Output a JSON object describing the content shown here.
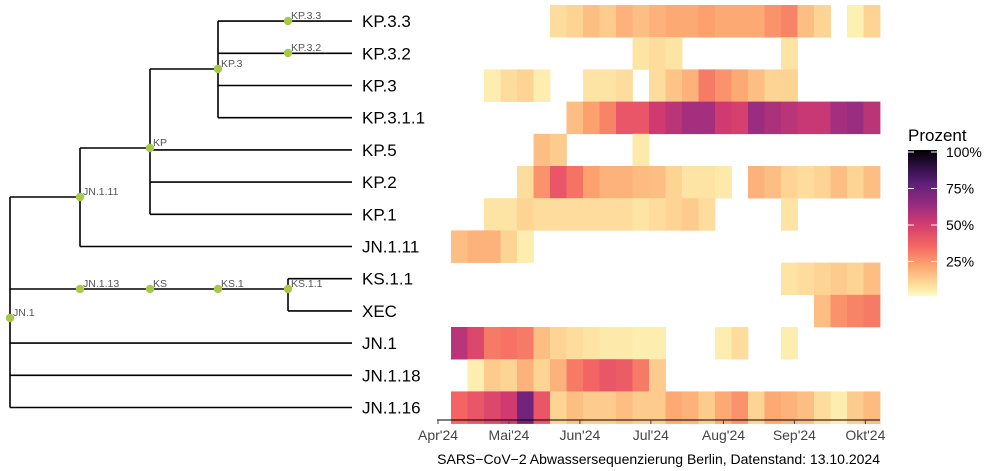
{
  "chart_data": {
    "type": "heatmap",
    "caption": "SARS−CoV−2 Abwassersequenzierung Berlin, Datenstand: 13.10.2024",
    "legend": {
      "title": "Prozent",
      "ticks": [
        "25%",
        "50%",
        "75%",
        "100%"
      ],
      "tick_values": [
        25,
        50,
        75,
        100
      ],
      "range": [
        0,
        100
      ]
    },
    "x_axis": {
      "ticks": [
        "Apr'24",
        "Mai'24",
        "Jun'24",
        "Jul'24",
        "Aug'24",
        "Sep'24",
        "Okt'24"
      ],
      "tick_weeks": [
        0,
        4.3,
        8.6,
        12.9,
        17.3,
        21.6,
        25.9
      ]
    },
    "weeks": 26,
    "rows": [
      {
        "name": "KP.3.3",
        "values": [
          null,
          null,
          null,
          null,
          null,
          null,
          8,
          10,
          15,
          12,
          18,
          15,
          18,
          20,
          20,
          22,
          20,
          20,
          20,
          25,
          28,
          15,
          10,
          null,
          3,
          10
        ]
      },
      {
        "name": "KP.3.2",
        "values": [
          null,
          null,
          null,
          null,
          null,
          null,
          null,
          null,
          null,
          null,
          null,
          6,
          8,
          6,
          null,
          null,
          null,
          null,
          null,
          null,
          6,
          null,
          null,
          null,
          null,
          null
        ]
      },
      {
        "name": "KP.3",
        "values": [
          null,
          null,
          4,
          8,
          10,
          4,
          null,
          null,
          6,
          6,
          8,
          null,
          8,
          14,
          18,
          30,
          25,
          20,
          15,
          10,
          10,
          null,
          null,
          null,
          null,
          null
        ]
      },
      {
        "name": "KP.3.1.1",
        "values": [
          null,
          null,
          null,
          null,
          null,
          null,
          null,
          15,
          22,
          28,
          40,
          40,
          50,
          55,
          60,
          60,
          50,
          48,
          62,
          58,
          55,
          52,
          52,
          60,
          62,
          55
        ]
      },
      {
        "name": "KP.5",
        "values": [
          null,
          null,
          null,
          null,
          null,
          15,
          12,
          null,
          null,
          null,
          null,
          5,
          null,
          null,
          null,
          null,
          null,
          null,
          null,
          null,
          null,
          null,
          null,
          null,
          null,
          null
        ]
      },
      {
        "name": "KP.2",
        "values": [
          null,
          null,
          null,
          null,
          8,
          25,
          40,
          32,
          22,
          18,
          18,
          16,
          15,
          10,
          6,
          6,
          5,
          null,
          18,
          15,
          10,
          8,
          10,
          15,
          10,
          15
        ]
      },
      {
        "name": "KP.1",
        "values": [
          null,
          null,
          6,
          6,
          10,
          8,
          8,
          8,
          8,
          8,
          8,
          6,
          8,
          10,
          12,
          8,
          null,
          null,
          null,
          null,
          6,
          null,
          null,
          null,
          null,
          null
        ]
      },
      {
        "name": "JN.1.11",
        "values": [
          15,
          18,
          18,
          10,
          4,
          null,
          null,
          null,
          null,
          null,
          null,
          null,
          null,
          null,
          null,
          null,
          null,
          null,
          null,
          null,
          null,
          null,
          null,
          null,
          null,
          null
        ]
      },
      {
        "name": "KS.1.1",
        "values": [
          null,
          null,
          null,
          null,
          null,
          null,
          null,
          null,
          null,
          null,
          null,
          null,
          null,
          null,
          null,
          null,
          null,
          null,
          null,
          null,
          6,
          8,
          10,
          12,
          10,
          15
        ]
      },
      {
        "name": "XEC",
        "values": [
          null,
          null,
          null,
          null,
          null,
          null,
          null,
          null,
          null,
          null,
          null,
          null,
          null,
          null,
          null,
          null,
          null,
          null,
          null,
          null,
          null,
          null,
          15,
          25,
          28,
          30
        ]
      },
      {
        "name": "JN.1",
        "values": [
          55,
          45,
          30,
          32,
          30,
          15,
          10,
          8,
          6,
          5,
          5,
          4,
          4,
          null,
          null,
          null,
          4,
          8,
          null,
          null,
          4,
          null,
          null,
          null,
          null,
          null
        ]
      },
      {
        "name": "JN.1.18",
        "values": [
          null,
          4,
          12,
          10,
          18,
          10,
          18,
          30,
          35,
          40,
          38,
          30,
          12,
          null,
          null,
          null,
          null,
          null,
          null,
          null,
          null,
          null,
          null,
          null,
          null,
          null
        ]
      },
      {
        "name": "JN.1.16",
        "values": [
          35,
          40,
          45,
          50,
          72,
          40,
          10,
          15,
          12,
          12,
          15,
          12,
          12,
          20,
          18,
          12,
          20,
          25,
          10,
          20,
          18,
          15,
          8,
          4,
          12,
          16
        ]
      }
    ],
    "tree": {
      "internal_nodes": [
        "JN.1",
        "JN.1.11",
        "KP",
        "KP.3",
        "KP.3.3",
        "KP.3.2",
        "JN.1.13",
        "KS",
        "KS.1",
        "KS.1.1"
      ]
    }
  }
}
